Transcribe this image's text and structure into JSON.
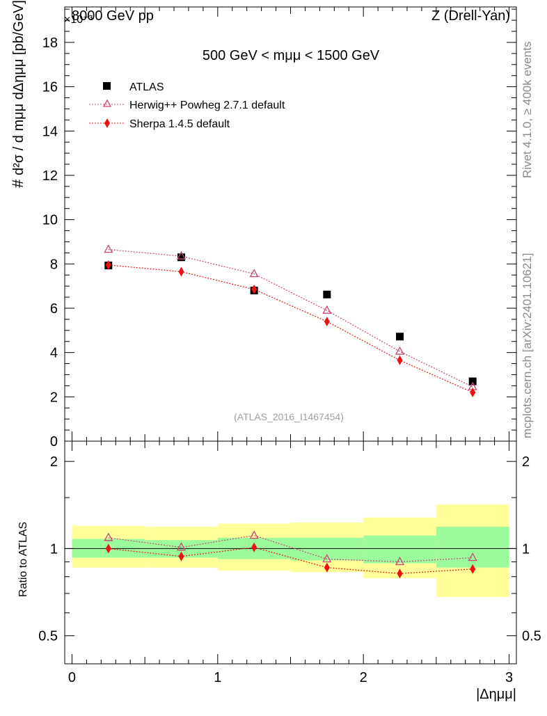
{
  "header": {
    "energy_label": "8000 GeV pp",
    "exponent_label": "×10⁻³",
    "process_label": "Z (Drell-Yan)",
    "cut_label": "500 GeV < mμμ < 1500 GeV",
    "watermark": "(ATLAS_2016_I1467454)"
  },
  "side": {
    "rivet_label": "Rivet 4.1.0, ≥ 400k events",
    "site_label": "mcplots.cern.ch [arXiv:2401.10621]"
  },
  "axes": {
    "main_ylabel": "d²σ / d mμμ dΔημμ [pb/GeV]",
    "main_ylabel_prefix": "#",
    "ratio_ylabel": "Ratio to ATLAS",
    "xlabel": "|Δημμ|"
  },
  "chart_data": {
    "type": "scatter",
    "title": "500 GeV < mμμ < 1500 GeV",
    "xlabel": "|Δημμ|",
    "ylabel": "d²σ/d mμμ dΔημμ [pb/GeV] ×10⁻³",
    "xlim": [
      -0.05,
      3.05
    ],
    "ylim": [
      0,
      19.6
    ],
    "x_ticks": [
      "0",
      "1",
      "2",
      "3"
    ],
    "y_ticks": [
      "0",
      "2",
      "4",
      "6",
      "8",
      "10",
      "12",
      "14",
      "16",
      "18"
    ],
    "bins": [
      [
        0,
        0.5
      ],
      [
        0.5,
        1.0
      ],
      [
        1.0,
        1.5
      ],
      [
        1.5,
        2.0
      ],
      [
        2.0,
        2.5
      ],
      [
        2.5,
        3.0
      ]
    ],
    "x": [
      0.25,
      0.75,
      1.25,
      1.75,
      2.25,
      2.75
    ],
    "legend_position": "top-left",
    "series": [
      {
        "name": "ATLAS",
        "marker": "square",
        "color": "#000000",
        "values": [
          7.93,
          8.3,
          6.8,
          6.62,
          4.72,
          2.7
        ]
      },
      {
        "name": "Herwig++ Powheg 2.7.1 default",
        "marker": "open-triangle",
        "color": "#c74878",
        "values": [
          8.65,
          8.35,
          7.55,
          5.9,
          4.05,
          2.45
        ]
      },
      {
        "name": "Sherpa 1.4.5 default",
        "marker": "diamond",
        "color": "#ee1111",
        "values": [
          7.95,
          7.65,
          6.85,
          5.4,
          3.65,
          2.2
        ]
      }
    ],
    "ratio": {
      "ylabel": "Ratio to ATLAS",
      "ylim": [
        0.4,
        2.35
      ],
      "y_ticks": [
        "0.5",
        "1",
        "2"
      ],
      "reference": 1,
      "band_inner": [
        [
          0.93,
          1.08
        ],
        [
          0.93,
          1.07
        ],
        [
          0.92,
          1.09
        ],
        [
          0.91,
          1.09
        ],
        [
          0.89,
          1.11
        ],
        [
          0.86,
          1.19
        ]
      ],
      "band_outer": [
        [
          0.86,
          1.2
        ],
        [
          0.86,
          1.19
        ],
        [
          0.84,
          1.22
        ],
        [
          0.83,
          1.23
        ],
        [
          0.79,
          1.28
        ],
        [
          0.68,
          1.42
        ]
      ],
      "band_inner_color": "#9cfc9c",
      "band_outer_color": "#ffff99",
      "series": [
        {
          "name": "Herwig++ Powheg 2.7.1 default",
          "values": [
            1.09,
            1.01,
            1.11,
            0.92,
            0.9,
            0.93
          ]
        },
        {
          "name": "Sherpa 1.4.5 default",
          "values": [
            1.0,
            0.94,
            1.01,
            0.86,
            0.82,
            0.85
          ]
        }
      ]
    }
  }
}
